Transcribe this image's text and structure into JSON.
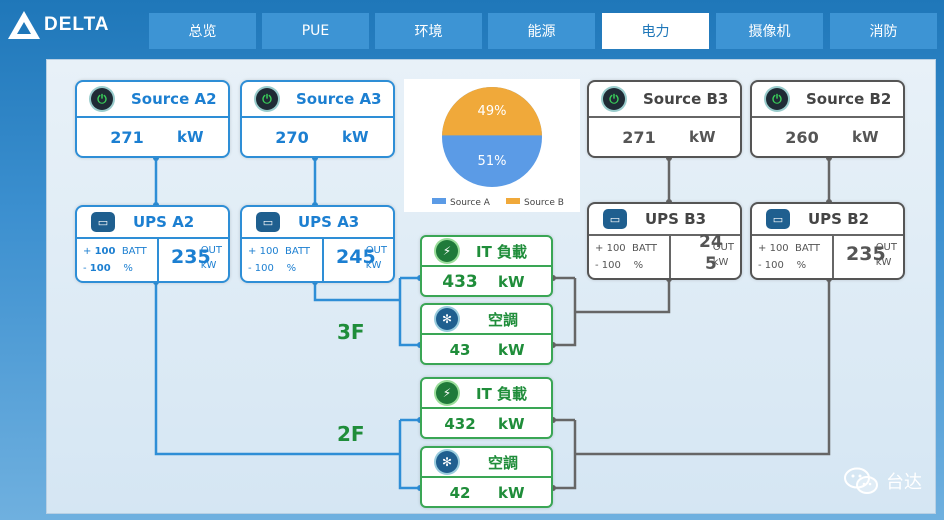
{
  "brand": {
    "logo_text": "DELTA"
  },
  "nav": {
    "tabs": [
      {
        "label": "总览",
        "active": false
      },
      {
        "label": "PUE",
        "active": false
      },
      {
        "label": "环境",
        "active": false
      },
      {
        "label": "能源",
        "active": false
      },
      {
        "label": "电力",
        "active": true
      },
      {
        "label": "摄像机",
        "active": false
      },
      {
        "label": "消防",
        "active": false
      }
    ]
  },
  "sources": {
    "a2": {
      "name": "Source A2",
      "value": "271",
      "unit": "kW"
    },
    "a3": {
      "name": "Source A3",
      "value": "270",
      "unit": "kW"
    },
    "b3": {
      "name": "Source B3",
      "value": "271",
      "unit": "kW"
    },
    "b2": {
      "name": "Source B2",
      "value": "260",
      "unit": "kW"
    }
  },
  "ups": {
    "a2": {
      "name": "UPS A2",
      "plus": "+",
      "minus": "-",
      "batt_top": "100",
      "batt_bottom": "100",
      "batt_label": "BATT",
      "pct_label": "%",
      "out_value": "235",
      "out_label": "OUT",
      "out_unit": "kW"
    },
    "a3": {
      "name": "UPS A3",
      "plus": "+",
      "minus": "-",
      "batt_top": "100",
      "batt_bottom": "100",
      "batt_label": "BATT",
      "pct_label": "%",
      "out_value": "245",
      "out_label": "OUT",
      "out_unit": "kW"
    },
    "b3": {
      "name": "UPS B3",
      "plus": "+",
      "minus": "-",
      "batt_top": "100",
      "batt_bottom": "100",
      "batt_label": "BATT",
      "pct_label": "%",
      "out_value_top": "24",
      "out_value_bottom": "5",
      "out_label": "OUT",
      "out_unit": "kW"
    },
    "b2": {
      "name": "UPS B2",
      "plus": "+",
      "minus": "-",
      "batt_top": "100",
      "batt_bottom": "100",
      "batt_label": "BATT",
      "pct_label": "%",
      "out_value": "235",
      "out_label": "OUT",
      "out_unit": "kW"
    }
  },
  "floors": {
    "f3": {
      "label": "3F",
      "it_name": "IT 負載",
      "it_value": "433",
      "it_unit": "kW",
      "ac_name": "空調",
      "ac_value": "43",
      "ac_unit": "kW"
    },
    "f2": {
      "label": "2F",
      "it_name": "IT 負載",
      "it_value": "432",
      "it_unit": "kW",
      "ac_name": "空調",
      "ac_value": "42",
      "ac_unit": "kW"
    }
  },
  "chart_data": {
    "type": "pie",
    "categories": [
      "Source A",
      "Source B"
    ],
    "values": [
      51,
      49
    ],
    "labels": [
      "51%",
      "49%"
    ],
    "colors": [
      "#5b9be6",
      "#f0a93a"
    ],
    "legend": "bottom"
  },
  "watermark": {
    "text": "台达"
  },
  "icons": {
    "source": "power-source-icon",
    "ups": "battery-icon",
    "it": "lightning-icon",
    "ac": "fan-icon"
  }
}
